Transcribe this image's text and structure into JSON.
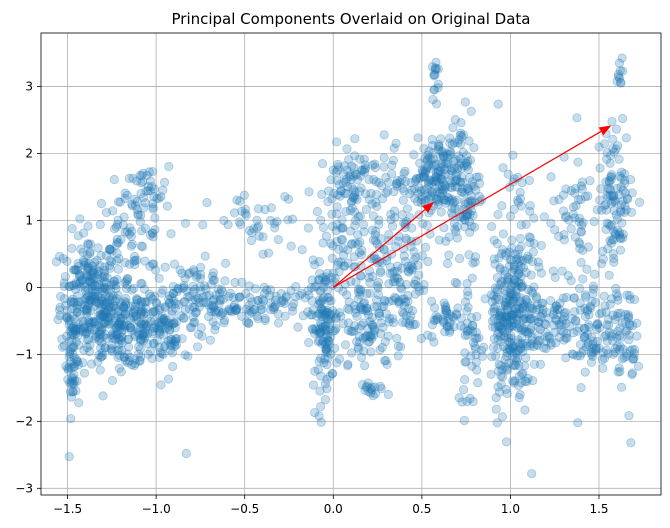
{
  "chart_data": {
    "type": "scatter",
    "title": "Principal Components Overlaid on Original Data",
    "xlabel": "",
    "ylabel": "",
    "xlim": [
      -1.65,
      1.85
    ],
    "ylim": [
      -3.1,
      3.8
    ],
    "xticks": [
      -1.5,
      -1.0,
      -0.5,
      0.0,
      0.5,
      1.0,
      1.5
    ],
    "xtick_labels": [
      "−1.5",
      "−1.0",
      "−0.5",
      "0.0",
      "0.5",
      "1.0",
      "1.5"
    ],
    "yticks": [
      -3,
      -2,
      -1,
      0,
      1,
      2,
      3
    ],
    "ytick_labels": [
      "−3",
      "−2",
      "−1",
      "0",
      "1",
      "2",
      "3"
    ],
    "grid": true,
    "point_color": "#1f77b4",
    "point_alpha": 0.25,
    "arrow_color": "#ff0000",
    "arrows": [
      {
        "x0": 0.0,
        "y0": 0.0,
        "x1": 0.57,
        "y1": 1.28
      },
      {
        "x0": 0.0,
        "y0": 0.0,
        "x1": 1.57,
        "y1": 2.42
      }
    ],
    "clusters": [
      {
        "cx": -1.38,
        "cy": -0.1,
        "sx": 0.08,
        "sy": 0.45,
        "n": 220
      },
      {
        "cx": -1.47,
        "cy": -1.0,
        "sx": 0.02,
        "sy": 0.45,
        "n": 60
      },
      {
        "cx": -1.2,
        "cy": -0.6,
        "sx": 0.12,
        "sy": 0.3,
        "n": 200
      },
      {
        "cx": -1.15,
        "cy": 0.6,
        "sx": 0.1,
        "sy": 0.45,
        "n": 90
      },
      {
        "cx": -1.05,
        "cy": 1.4,
        "sx": 0.06,
        "sy": 0.2,
        "n": 35
      },
      {
        "cx": -0.95,
        "cy": -0.6,
        "sx": 0.12,
        "sy": 0.3,
        "n": 120
      },
      {
        "cx": -0.8,
        "cy": 0.0,
        "sx": 0.12,
        "sy": 0.2,
        "n": 60
      },
      {
        "cx": -0.6,
        "cy": -0.3,
        "sx": 0.15,
        "sy": 0.15,
        "n": 80
      },
      {
        "cx": -0.4,
        "cy": 0.9,
        "sx": 0.15,
        "sy": 0.25,
        "n": 40
      },
      {
        "cx": -0.25,
        "cy": -0.2,
        "sx": 0.1,
        "sy": 0.15,
        "n": 40
      },
      {
        "cx": -0.05,
        "cy": -0.6,
        "sx": 0.04,
        "sy": 0.45,
        "n": 120
      },
      {
        "cx": 0.05,
        "cy": 0.5,
        "sx": 0.06,
        "sy": 0.4,
        "n": 50
      },
      {
        "cx": 0.15,
        "cy": 1.5,
        "sx": 0.12,
        "sy": 0.3,
        "n": 110
      },
      {
        "cx": 0.2,
        "cy": -0.6,
        "sx": 0.1,
        "sy": 0.4,
        "n": 110
      },
      {
        "cx": 0.25,
        "cy": 0.4,
        "sx": 0.1,
        "sy": 0.35,
        "n": 60
      },
      {
        "cx": 0.42,
        "cy": 0.2,
        "sx": 0.06,
        "sy": 0.5,
        "n": 70
      },
      {
        "cx": 0.22,
        "cy": -1.5,
        "sx": 0.04,
        "sy": 0.05,
        "n": 12
      },
      {
        "cx": 0.55,
        "cy": 1.6,
        "sx": 0.08,
        "sy": 0.3,
        "n": 150
      },
      {
        "cx": 0.72,
        "cy": 1.5,
        "sx": 0.06,
        "sy": 0.6,
        "n": 120
      },
      {
        "cx": 0.58,
        "cy": 3.2,
        "sx": 0.01,
        "sy": 0.18,
        "n": 14
      },
      {
        "cx": 0.65,
        "cy": -0.5,
        "sx": 0.05,
        "sy": 0.15,
        "n": 40
      },
      {
        "cx": 0.78,
        "cy": -0.8,
        "sx": 0.04,
        "sy": 0.55,
        "n": 45
      },
      {
        "cx": 0.95,
        "cy": -0.4,
        "sx": 0.04,
        "sy": 0.6,
        "n": 90
      },
      {
        "cx": 1.03,
        "cy": -0.5,
        "sx": 0.05,
        "sy": 0.6,
        "n": 150
      },
      {
        "cx": 1.05,
        "cy": 0.6,
        "sx": 0.06,
        "sy": 0.6,
        "n": 60
      },
      {
        "cx": 1.15,
        "cy": -0.5,
        "sx": 0.12,
        "sy": 0.3,
        "n": 90
      },
      {
        "cx": 1.35,
        "cy": 1.1,
        "sx": 0.07,
        "sy": 0.4,
        "n": 50
      },
      {
        "cx": 1.45,
        "cy": -0.6,
        "sx": 0.1,
        "sy": 0.4,
        "n": 120
      },
      {
        "cx": 1.6,
        "cy": 1.4,
        "sx": 0.05,
        "sy": 0.5,
        "n": 100
      },
      {
        "cx": 1.62,
        "cy": 3.15,
        "sx": 0.01,
        "sy": 0.15,
        "n": 10
      },
      {
        "cx": 1.65,
        "cy": -0.7,
        "sx": 0.03,
        "sy": 0.4,
        "n": 40
      }
    ],
    "outliers": [
      [
        -0.83,
        -2.48
      ],
      [
        1.12,
        -2.78
      ],
      [
        1.68,
        -2.32
      ],
      [
        1.38,
        -2.02
      ],
      [
        -0.08,
        -1.92
      ],
      [
        -1.3,
        -1.62
      ],
      [
        0.92,
        -1.82
      ],
      [
        0.57,
        2.95
      ]
    ]
  }
}
